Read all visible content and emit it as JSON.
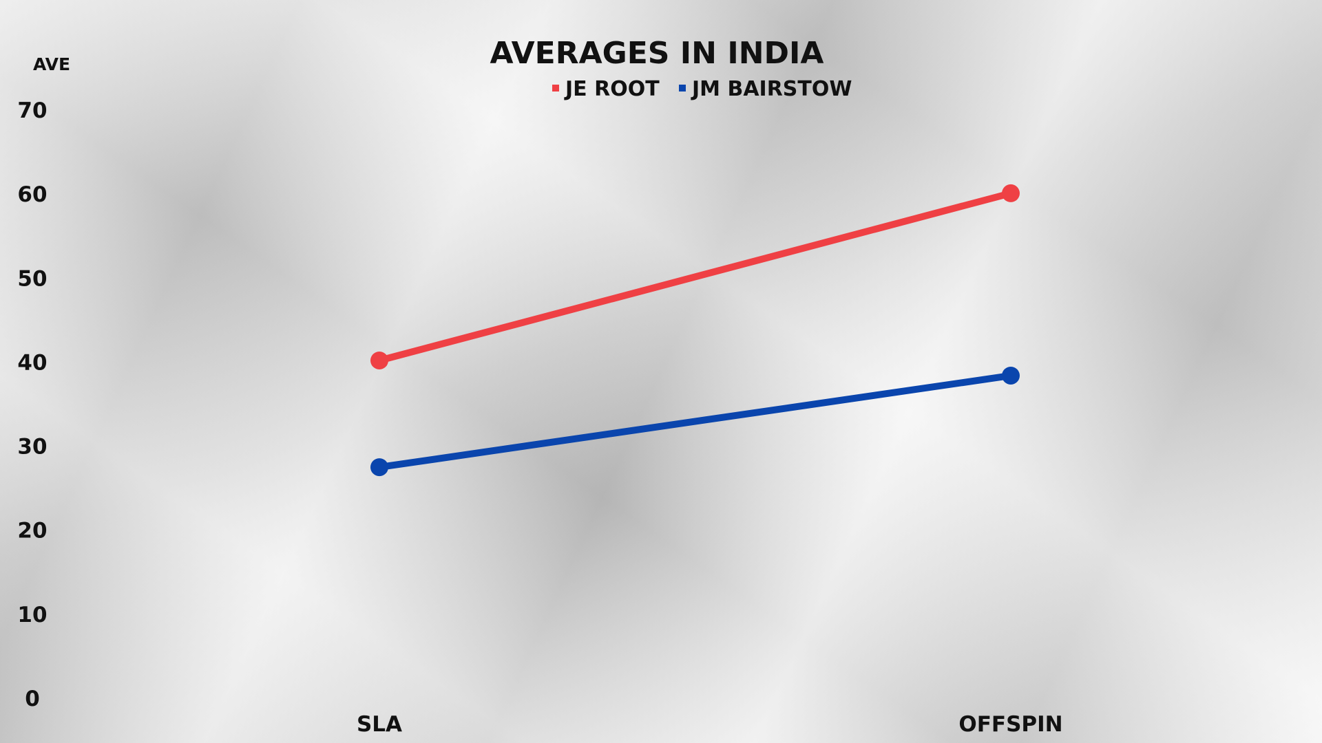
{
  "chart_data": {
    "type": "line",
    "title": "AVERAGES IN INDIA",
    "ylabel": "AVE",
    "xlabel": "",
    "categories": [
      "SLA",
      "OFFSPIN"
    ],
    "ylim": [
      0,
      70
    ],
    "yticks": [
      0,
      10,
      20,
      30,
      40,
      50,
      60,
      70
    ],
    "grid": false,
    "legend_position": "top-center",
    "series": [
      {
        "name": "JE ROOT",
        "color": "#ef4044",
        "values": [
          40.2,
          60.1
        ]
      },
      {
        "name": "JM BAIRSTOW",
        "color": "#0a45ad",
        "values": [
          27.5,
          38.4
        ]
      }
    ]
  }
}
